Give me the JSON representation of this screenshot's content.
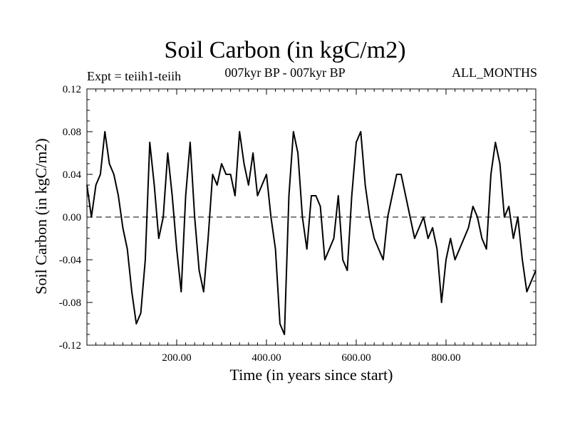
{
  "chart_data": {
    "type": "line",
    "title": "Soil Carbon (in kgC/m2)",
    "subtitle": "007kyr BP - 007kyr BP",
    "annotations": {
      "left": "Expt = teiih1-teiih",
      "right": "ALL_MONTHS"
    },
    "xlabel": "Time (in years since start)",
    "ylabel": "Soil Carbon (in kgC/m2)",
    "xlim": [
      0,
      1000
    ],
    "ylim": [
      -0.12,
      0.12
    ],
    "xticks": [
      200,
      400,
      600,
      800
    ],
    "xtick_labels": [
      "200.00",
      "400.00",
      "600.00",
      "800.00"
    ],
    "yticks": [
      -0.12,
      -0.08,
      -0.04,
      0.0,
      0.04,
      0.08,
      0.12
    ],
    "ytick_labels": [
      "-0.12",
      "-0.08",
      "-0.04",
      "0.00",
      "0.04",
      "0.08",
      "0.12"
    ],
    "zero_line": "dashed",
    "grid": false,
    "series": [
      {
        "color": "#000000",
        "x": [
          0,
          10,
          20,
          30,
          40,
          50,
          60,
          70,
          80,
          90,
          100,
          110,
          120,
          130,
          140,
          150,
          160,
          170,
          180,
          190,
          200,
          210,
          220,
          230,
          240,
          250,
          260,
          270,
          280,
          290,
          300,
          310,
          320,
          330,
          340,
          350,
          360,
          370,
          380,
          390,
          400,
          410,
          420,
          430,
          440,
          450,
          460,
          470,
          480,
          490,
          500,
          510,
          520,
          530,
          540,
          550,
          560,
          570,
          580,
          590,
          600,
          610,
          620,
          630,
          640,
          650,
          660,
          670,
          680,
          690,
          700,
          710,
          720,
          730,
          740,
          750,
          760,
          770,
          780,
          790,
          800,
          810,
          820,
          830,
          840,
          850,
          860,
          870,
          880,
          890,
          900,
          910,
          920,
          930,
          940,
          950,
          960,
          970,
          980,
          990,
          1000
        ],
        "y": [
          0.03,
          0.0,
          0.03,
          0.04,
          0.08,
          0.05,
          0.04,
          0.02,
          -0.01,
          -0.03,
          -0.07,
          -0.1,
          -0.09,
          -0.04,
          0.07,
          0.03,
          -0.02,
          0.0,
          0.06,
          0.02,
          -0.03,
          -0.07,
          0.02,
          0.07,
          0.0,
          -0.05,
          -0.07,
          -0.02,
          0.04,
          0.03,
          0.05,
          0.04,
          0.04,
          0.02,
          0.08,
          0.05,
          0.03,
          0.06,
          0.02,
          0.03,
          0.04,
          0.0,
          -0.03,
          -0.1,
          -0.11,
          0.02,
          0.08,
          0.06,
          0.0,
          -0.03,
          0.02,
          0.02,
          0.01,
          -0.04,
          -0.03,
          -0.02,
          0.02,
          -0.04,
          -0.05,
          0.02,
          0.07,
          0.08,
          0.03,
          0.0,
          -0.02,
          -0.03,
          -0.04,
          0.0,
          0.02,
          0.04,
          0.04,
          0.02,
          0.0,
          -0.02,
          -0.01,
          0.0,
          -0.02,
          -0.01,
          -0.03,
          -0.08,
          -0.04,
          -0.02,
          -0.04,
          -0.03,
          -0.02,
          -0.01,
          0.01,
          0.0,
          -0.02,
          -0.03,
          0.04,
          0.07,
          0.05,
          0.0,
          0.01,
          -0.02,
          0.0,
          -0.04,
          -0.07,
          -0.06,
          -0.05
        ]
      }
    ]
  }
}
